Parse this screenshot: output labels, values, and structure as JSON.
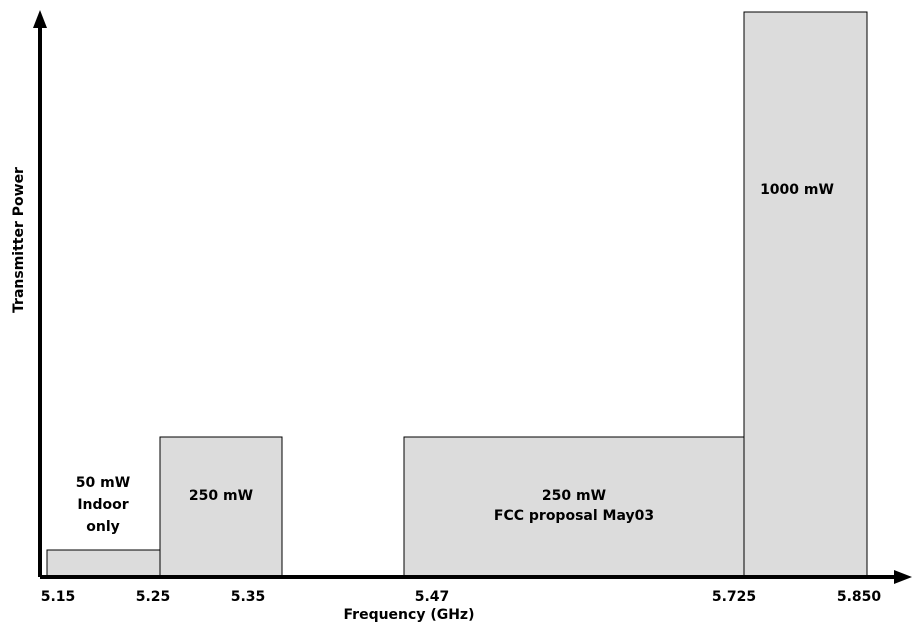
{
  "chart_data": {
    "type": "bar",
    "title": "",
    "xlabel": "Frequency (GHz)",
    "ylabel": "Transmitter Power",
    "x_ticks": [
      "5.15",
      "5.25",
      "5.35",
      "5.47",
      "5.725",
      "5.850"
    ],
    "ylim": [
      0,
      1000
    ],
    "grid": false,
    "legend": "none",
    "bands": [
      {
        "x_start": "5.15",
        "x_end": "5.25",
        "value": 50,
        "label_lines": [
          "50 mW",
          "Indoor",
          "only"
        ]
      },
      {
        "x_start": "5.25",
        "x_end": "5.35",
        "value": 250,
        "label_lines": [
          "250 mW"
        ]
      },
      {
        "x_start": "5.47",
        "x_end": "5.725",
        "value": 250,
        "label_lines": [
          "250 mW",
          "FCC proposal May03"
        ]
      },
      {
        "x_start": "5.725",
        "x_end": "5.850",
        "value": 1000,
        "label_lines": [
          "1000 mW"
        ]
      }
    ],
    "colors": {
      "bar_fill": "#dcdcdc",
      "bar_stroke": "#000000",
      "axis": "#000000"
    }
  }
}
